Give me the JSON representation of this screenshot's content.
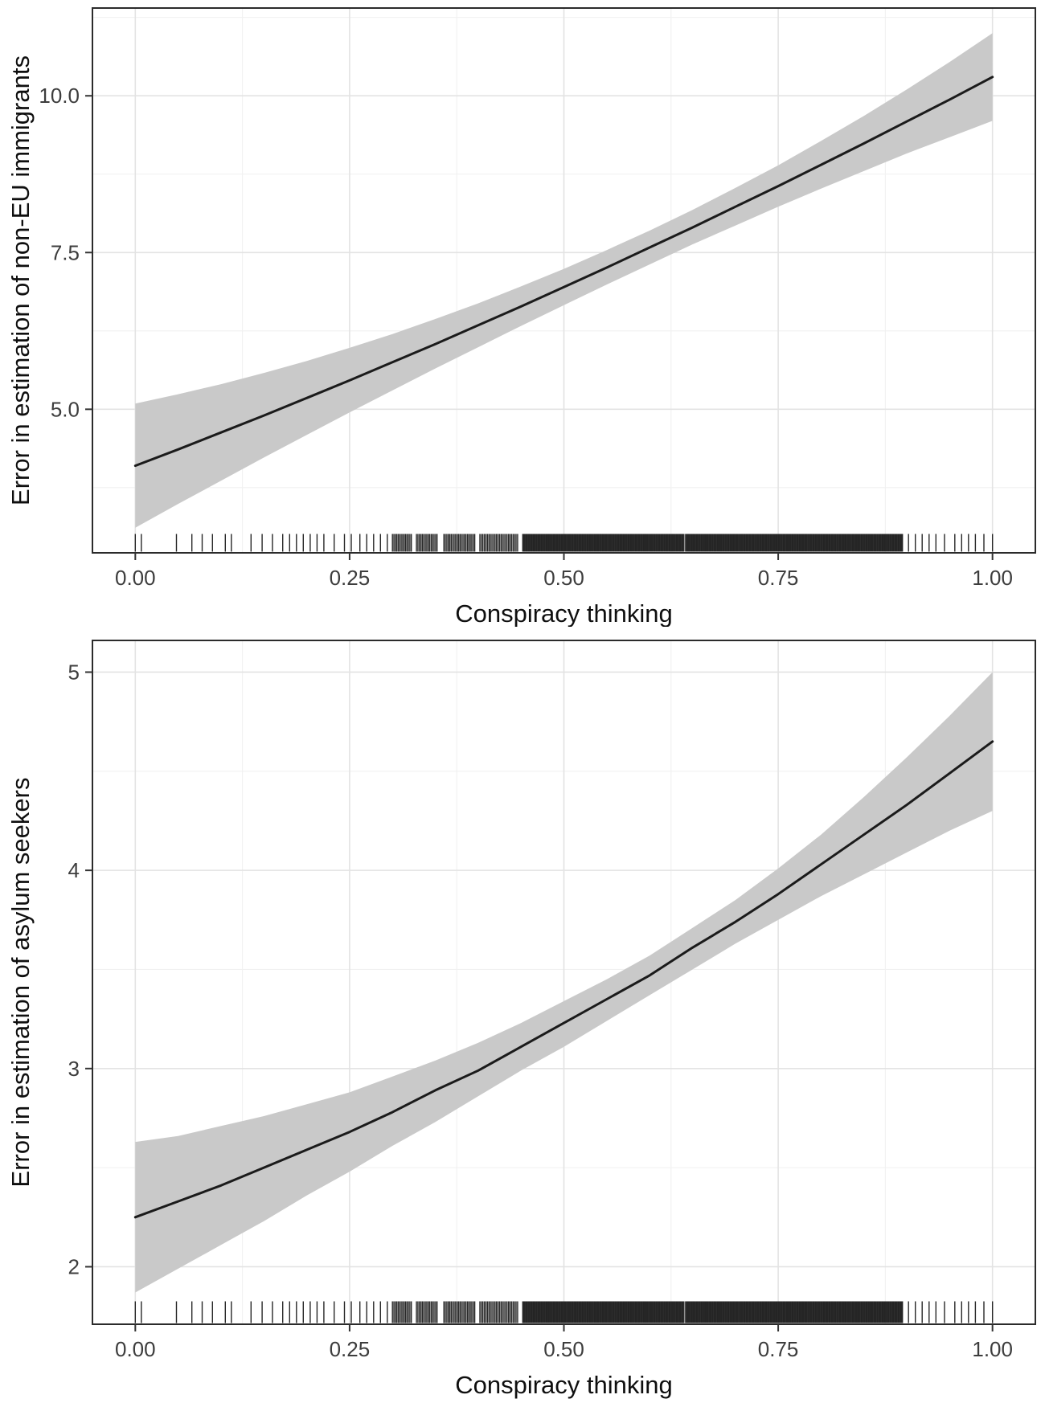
{
  "page": {
    "background": "#ffffff"
  },
  "style": {
    "line_color": "#1b1b1b",
    "band_color": "#c9c9c9",
    "grid_major": "#e3e3e3",
    "grid_minor": "#f1f1f1",
    "panel_border": "#2b2b2b",
    "tick_color": "#333333",
    "tick_label_color": "#3d3d3d",
    "axis_title_color": "#0f0f0f"
  },
  "rug_x_distribution": {
    "marks": [
      0.0,
      0.007,
      0.048,
      0.066,
      0.078,
      0.09,
      0.105,
      0.112,
      0.135,
      0.148,
      0.16,
      0.172,
      0.18,
      0.188,
      0.196,
      0.204,
      0.212,
      0.22,
      0.232,
      0.244,
      0.252,
      0.262,
      0.27,
      0.278,
      0.286,
      0.294,
      0.902,
      0.91,
      0.918,
      0.926,
      0.934,
      0.944,
      0.956,
      0.964,
      0.972,
      0.98,
      0.99,
      1.0
    ],
    "bands": [
      {
        "from": 0.3,
        "to": 0.322,
        "count": 14
      },
      {
        "from": 0.328,
        "to": 0.352,
        "count": 15
      },
      {
        "from": 0.36,
        "to": 0.396,
        "count": 22
      },
      {
        "from": 0.402,
        "to": 0.446,
        "count": 26
      },
      {
        "from": 0.452,
        "to": 0.64,
        "count": 170
      },
      {
        "from": 0.642,
        "to": 0.895,
        "count": 230
      }
    ]
  },
  "chart_data": [
    {
      "type": "line",
      "title": "",
      "xlabel": "Conspiracy thinking",
      "ylabel": "Error in estimation of non-EU immigrants",
      "xlim": [
        -0.05,
        1.05
      ],
      "ylim": [
        2.71,
        11.4
      ],
      "xticks": [
        0,
        0.25,
        0.5,
        0.75,
        1
      ],
      "xtick_labels": [
        "0.00",
        "0.25",
        "0.50",
        "0.75",
        "1.00"
      ],
      "yticks": [
        5.0,
        7.5,
        10.0
      ],
      "ytick_labels": [
        "5.0",
        "7.5",
        "10.0"
      ],
      "grid": "on",
      "legend": "none",
      "rug": "bottom",
      "x": [
        0,
        0.05,
        0.1,
        0.15,
        0.2,
        0.25,
        0.3,
        0.35,
        0.4,
        0.45,
        0.5,
        0.55,
        0.6,
        0.65,
        0.7,
        0.75,
        0.8,
        0.85,
        0.9,
        0.95,
        1
      ],
      "series": [
        {
          "name": "predicted error",
          "values": [
            4.1,
            4.36,
            4.63,
            4.9,
            5.18,
            5.46,
            5.75,
            6.04,
            6.34,
            6.64,
            6.95,
            7.26,
            7.58,
            7.9,
            8.23,
            8.56,
            8.9,
            9.24,
            9.59,
            9.94,
            10.3
          ]
        }
      ],
      "band": {
        "lower": [
          3.11,
          3.49,
          3.86,
          4.23,
          4.59,
          4.95,
          5.3,
          5.65,
          5.99,
          6.33,
          6.66,
          6.99,
          7.31,
          7.63,
          7.93,
          8.23,
          8.52,
          8.8,
          9.08,
          9.34,
          9.6
        ],
        "upper": [
          5.09,
          5.24,
          5.4,
          5.58,
          5.77,
          5.98,
          6.2,
          6.44,
          6.69,
          6.96,
          7.24,
          7.54,
          7.85,
          8.18,
          8.53,
          8.89,
          9.28,
          9.68,
          10.1,
          10.54,
          11.0
        ]
      }
    },
    {
      "type": "line",
      "title": "",
      "xlabel": "Conspiracy thinking",
      "ylabel": "Error in estimation of asylum seekers",
      "xlim": [
        -0.05,
        1.05
      ],
      "ylim": [
        1.71,
        5.16
      ],
      "xticks": [
        0,
        0.25,
        0.5,
        0.75,
        1
      ],
      "xtick_labels": [
        "0.00",
        "0.25",
        "0.50",
        "0.75",
        "1.00"
      ],
      "yticks": [
        2,
        3,
        4,
        5
      ],
      "ytick_labels": [
        "2",
        "3",
        "4",
        "5"
      ],
      "grid": "on",
      "legend": "none",
      "rug": "bottom",
      "x": [
        0,
        0.05,
        0.1,
        0.15,
        0.2,
        0.25,
        0.3,
        0.35,
        0.4,
        0.45,
        0.5,
        0.55,
        0.6,
        0.65,
        0.7,
        0.75,
        0.8,
        0.85,
        0.9,
        0.95,
        1
      ],
      "series": [
        {
          "name": "predicted error",
          "values": [
            2.25,
            2.33,
            2.41,
            2.5,
            2.59,
            2.68,
            2.78,
            2.89,
            2.99,
            3.11,
            3.23,
            3.35,
            3.47,
            3.61,
            3.74,
            3.88,
            4.03,
            4.18,
            4.33,
            4.49,
            4.65
          ]
        }
      ],
      "band": {
        "lower": [
          1.87,
          1.99,
          2.11,
          2.23,
          2.36,
          2.48,
          2.61,
          2.73,
          2.86,
          2.99,
          3.11,
          3.24,
          3.37,
          3.5,
          3.63,
          3.75,
          3.87,
          3.98,
          4.09,
          4.2,
          4.3
        ],
        "upper": [
          2.63,
          2.66,
          2.71,
          2.76,
          2.82,
          2.88,
          2.96,
          3.04,
          3.13,
          3.23,
          3.34,
          3.45,
          3.57,
          3.71,
          3.85,
          4.01,
          4.18,
          4.37,
          4.57,
          4.78,
          5.0
        ]
      }
    }
  ]
}
